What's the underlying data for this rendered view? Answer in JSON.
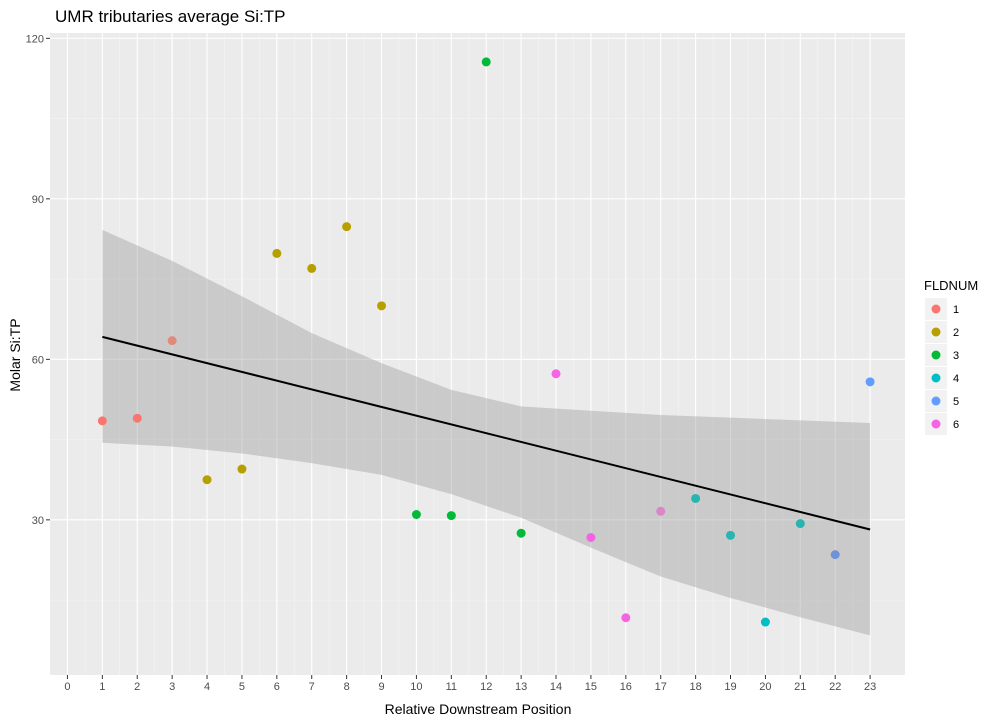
{
  "chart_data": {
    "type": "scatter",
    "title": "UMR tributaries average Si:TP",
    "xlabel": "Relative Downstream Position",
    "ylabel": "Molar Si:TP",
    "xlim": [
      -0.5,
      24
    ],
    "ylim": [
      1,
      121
    ],
    "x_ticks": [
      0,
      1,
      2,
      3,
      4,
      5,
      6,
      7,
      8,
      9,
      10,
      11,
      12,
      13,
      14,
      15,
      16,
      17,
      18,
      19,
      20,
      21,
      22,
      23
    ],
    "x_tick_labels": [
      "0",
      "1",
      "2",
      "3",
      "4",
      "5",
      "6",
      "7",
      "8",
      "9",
      "10",
      "11",
      "12",
      "13",
      "14",
      "15",
      "16",
      "17",
      "18",
      "19",
      "20",
      "21",
      "22",
      "23"
    ],
    "y_ticks": [
      30,
      60,
      90,
      120
    ],
    "y_tick_labels": [
      "30",
      "60",
      "90",
      "120"
    ],
    "grid": true,
    "legend": {
      "title": "FLDNUM",
      "placement": "right",
      "entries": [
        {
          "label": "1",
          "color": "#F8766D"
        },
        {
          "label": "2",
          "color": "#B79F00"
        },
        {
          "label": "3",
          "color": "#00BA38"
        },
        {
          "label": "4",
          "color": "#00BFC4"
        },
        {
          "label": "5",
          "color": "#619CFF"
        },
        {
          "label": "6",
          "color": "#F564E3"
        }
      ]
    },
    "points": [
      {
        "x": 1,
        "y": 48.5,
        "color": "#F8766D"
      },
      {
        "x": 2,
        "y": 49,
        "color": "#F8766D"
      },
      {
        "x": 3,
        "y": 63.5,
        "color": "#E08B7A"
      },
      {
        "x": 4,
        "y": 37.5,
        "color": "#B79F00"
      },
      {
        "x": 5,
        "y": 39.5,
        "color": "#B79F00"
      },
      {
        "x": 6,
        "y": 79.8,
        "color": "#B79F00"
      },
      {
        "x": 7,
        "y": 77,
        "color": "#B79F00"
      },
      {
        "x": 8,
        "y": 84.8,
        "color": "#B79F00"
      },
      {
        "x": 9,
        "y": 70,
        "color": "#B79F00"
      },
      {
        "x": 10,
        "y": 31,
        "color": "#00BA38"
      },
      {
        "x": 11,
        "y": 30.8,
        "color": "#00BA38"
      },
      {
        "x": 12,
        "y": 115.6,
        "color": "#00BA38"
      },
      {
        "x": 13,
        "y": 27.5,
        "color": "#00BA38"
      },
      {
        "x": 14,
        "y": 57.3,
        "color": "#F564E3"
      },
      {
        "x": 15,
        "y": 26.7,
        "color": "#F564E3"
      },
      {
        "x": 16,
        "y": 11.7,
        "color": "#F564E3"
      },
      {
        "x": 17,
        "y": 31.6,
        "color": "#D985C8"
      },
      {
        "x": 18,
        "y": 34,
        "color": "#26B5B0"
      },
      {
        "x": 19,
        "y": 27.1,
        "color": "#26B5B0"
      },
      {
        "x": 20,
        "y": 10.9,
        "color": "#00BFC4"
      },
      {
        "x": 21,
        "y": 29.3,
        "color": "#26B5B0"
      },
      {
        "x": 22,
        "y": 23.5,
        "color": "#6F93D6"
      },
      {
        "x": 23,
        "y": 55.8,
        "color": "#619CFF"
      }
    ],
    "trend_line": {
      "x": [
        1,
        23
      ],
      "y": [
        64.2,
        28.2
      ],
      "color": "#000000"
    },
    "confidence_band": {
      "x": [
        1,
        3,
        5,
        7,
        9,
        11,
        13,
        15,
        17,
        19,
        21,
        23
      ],
      "lower": [
        44.4,
        43.7,
        42.4,
        40.6,
        38.4,
        34.8,
        30.4,
        24.8,
        19.4,
        15.4,
        11.8,
        8.4
      ],
      "upper": [
        84.2,
        78.4,
        71.8,
        64.9,
        59.3,
        54.3,
        51.2,
        50.4,
        49.6,
        49.1,
        48.6,
        48.1
      ],
      "color": "#999999"
    }
  }
}
